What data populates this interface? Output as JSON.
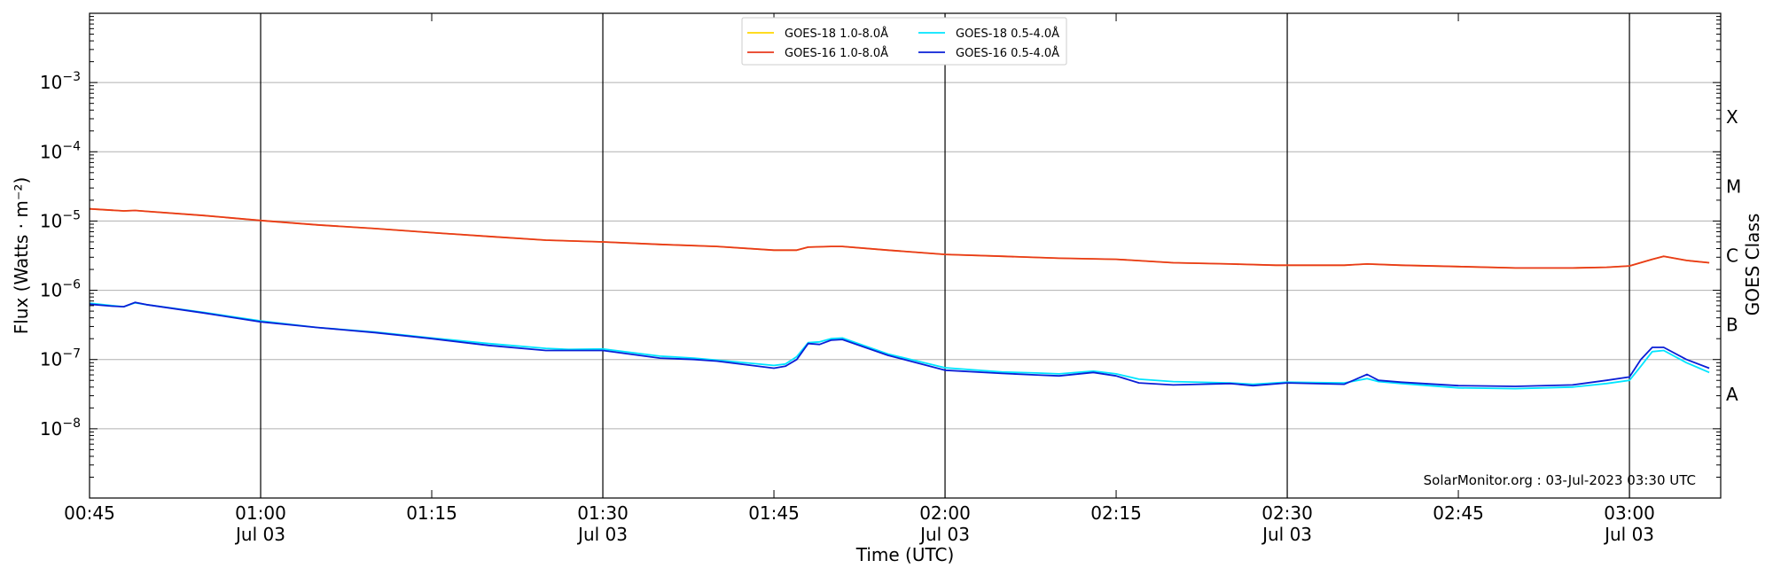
{
  "chart_data": {
    "type": "line",
    "title": "",
    "xlabel": "Time (UTC)",
    "ylabel": "Flux (Watts · m⁻²)",
    "y2label": "GOES Class",
    "yscale": "log",
    "ylim": [
      1e-09,
      0.01
    ],
    "xlim": [
      "00:45",
      "03:08"
    ],
    "grid": "horizontal",
    "legend_placement": "top-center",
    "watermark": "SolarMonitor.org : 03-Jul-2023 03:30 UTC",
    "xticks": [
      {
        "t": "00:45",
        "label": "00:45",
        "sub": ""
      },
      {
        "t": "01:00",
        "label": "01:00",
        "sub": "Jul 03"
      },
      {
        "t": "01:15",
        "label": "01:15",
        "sub": ""
      },
      {
        "t": "01:30",
        "label": "01:30",
        "sub": "Jul 03"
      },
      {
        "t": "01:45",
        "label": "01:45",
        "sub": ""
      },
      {
        "t": "02:00",
        "label": "02:00",
        "sub": "Jul 03"
      },
      {
        "t": "02:15",
        "label": "02:15",
        "sub": ""
      },
      {
        "t": "02:30",
        "label": "02:30",
        "sub": "Jul 03"
      },
      {
        "t": "02:45",
        "label": "02:45",
        "sub": ""
      },
      {
        "t": "03:00",
        "label": "03:00",
        "sub": "Jul 03"
      }
    ],
    "vlines": [
      "01:00",
      "01:30",
      "02:00",
      "02:30",
      "03:00"
    ],
    "yticks": [
      {
        "exp": -8,
        "label": "10",
        "sup": "−8"
      },
      {
        "exp": -7,
        "label": "10",
        "sup": "−7"
      },
      {
        "exp": -6,
        "label": "10",
        "sup": "−6"
      },
      {
        "exp": -5,
        "label": "10",
        "sup": "−5"
      },
      {
        "exp": -4,
        "label": "10",
        "sup": "−4"
      },
      {
        "exp": -3,
        "label": "10",
        "sup": "−3"
      }
    ],
    "goes_classes": [
      {
        "label": "A",
        "exp": -7.5
      },
      {
        "label": "B",
        "exp": -6.5
      },
      {
        "label": "C",
        "exp": -5.5
      },
      {
        "label": "M",
        "exp": -4.5
      },
      {
        "label": "X",
        "exp": -3.5
      }
    ],
    "series": [
      {
        "name": "GOES-18 1.0-8.0Å",
        "color": "#FFD700",
        "x": [
          "00:45",
          "00:48",
          "00:49",
          "00:50",
          "00:55",
          "01:00",
          "01:05",
          "01:10",
          "01:15",
          "01:20",
          "01:25",
          "01:30",
          "01:35",
          "01:40",
          "01:45",
          "01:47",
          "01:48",
          "01:50",
          "01:51",
          "01:55",
          "02:00",
          "02:05",
          "02:10",
          "02:15",
          "02:20",
          "02:25",
          "02:29",
          "02:30",
          "02:35",
          "02:37",
          "02:40",
          "02:45",
          "02:50",
          "02:55",
          "02:58",
          "03:00",
          "03:02",
          "03:03",
          "03:05",
          "03:07"
        ],
        "values": [
          1.5e-05,
          1.4e-05,
          1.42e-05,
          1.38e-05,
          1.2e-05,
          1.02e-05,
          8.8e-06,
          7.8e-06,
          6.8e-06,
          6e-06,
          5.3e-06,
          5e-06,
          4.6e-06,
          4.3e-06,
          3.8e-06,
          3.8e-06,
          4.2e-06,
          4.3e-06,
          4.3e-06,
          3.8e-06,
          3.3e-06,
          3.1e-06,
          2.9e-06,
          2.8e-06,
          2.5e-06,
          2.4e-06,
          2.3e-06,
          2.3e-06,
          2.3e-06,
          2.4e-06,
          2.3e-06,
          2.2e-06,
          2.1e-06,
          2.1e-06,
          2.15e-06,
          2.25e-06,
          2.8e-06,
          3.1e-06,
          2.7e-06,
          2.5e-06
        ]
      },
      {
        "name": "GOES-18 0.5-4.0Å",
        "color": "#00E5FF",
        "x": [
          "00:45",
          "00:47",
          "00:48",
          "00:49",
          "00:50",
          "00:55",
          "01:00",
          "01:05",
          "01:10",
          "01:15",
          "01:20",
          "01:25",
          "01:27",
          "01:30",
          "01:35",
          "01:38",
          "01:40",
          "01:45",
          "01:46",
          "01:47",
          "01:48",
          "01:49",
          "01:50",
          "01:51",
          "01:55",
          "02:00",
          "02:05",
          "02:08",
          "02:10",
          "02:13",
          "02:15",
          "02:17",
          "02:20",
          "02:25",
          "02:27",
          "02:30",
          "02:35",
          "02:37",
          "02:38",
          "02:40",
          "02:45",
          "02:50",
          "02:55",
          "02:58",
          "03:00",
          "03:01",
          "03:02",
          "03:03",
          "03:05",
          "03:07"
        ],
        "values": [
          6.5e-07,
          6e-07,
          5.8e-07,
          6.6e-07,
          6.2e-07,
          4.8e-07,
          3.6e-07,
          2.9e-07,
          2.5e-07,
          2.05e-07,
          1.7e-07,
          1.45e-07,
          1.4e-07,
          1.42e-07,
          1.12e-07,
          1.05e-07,
          9.8e-08,
          8.2e-08,
          8.6e-08,
          1.1e-07,
          1.75e-07,
          1.8e-07,
          2e-07,
          2.05e-07,
          1.2e-07,
          7.6e-08,
          6.6e-08,
          6.4e-08,
          6.2e-08,
          6.8e-08,
          6.2e-08,
          5.2e-08,
          4.8e-08,
          4.6e-08,
          4.4e-08,
          4.7e-08,
          4.6e-08,
          5.3e-08,
          4.8e-08,
          4.5e-08,
          3.9e-08,
          3.8e-08,
          4e-08,
          4.5e-08,
          5e-08,
          8e-08,
          1.3e-07,
          1.35e-07,
          9e-08,
          6.5e-08
        ]
      },
      {
        "name": "GOES-16 1.0-8.0Å",
        "color": "#E8391E",
        "x": [
          "00:45",
          "00:48",
          "00:49",
          "00:50",
          "00:55",
          "01:00",
          "01:05",
          "01:10",
          "01:15",
          "01:20",
          "01:25",
          "01:30",
          "01:35",
          "01:40",
          "01:45",
          "01:47",
          "01:48",
          "01:50",
          "01:51",
          "01:55",
          "02:00",
          "02:05",
          "02:10",
          "02:15",
          "02:20",
          "02:25",
          "02:29",
          "02:30",
          "02:35",
          "02:37",
          "02:40",
          "02:45",
          "02:50",
          "02:55",
          "02:58",
          "03:00",
          "03:02",
          "03:03",
          "03:05",
          "03:07"
        ],
        "values": [
          1.5e-05,
          1.4e-05,
          1.42e-05,
          1.38e-05,
          1.2e-05,
          1.02e-05,
          8.8e-06,
          7.8e-06,
          6.8e-06,
          6e-06,
          5.3e-06,
          5e-06,
          4.6e-06,
          4.3e-06,
          3.8e-06,
          3.8e-06,
          4.2e-06,
          4.3e-06,
          4.3e-06,
          3.8e-06,
          3.3e-06,
          3.1e-06,
          2.9e-06,
          2.8e-06,
          2.5e-06,
          2.4e-06,
          2.3e-06,
          2.3e-06,
          2.3e-06,
          2.4e-06,
          2.3e-06,
          2.2e-06,
          2.1e-06,
          2.1e-06,
          2.15e-06,
          2.25e-06,
          2.8e-06,
          3.1e-06,
          2.7e-06,
          2.5e-06
        ]
      },
      {
        "name": "GOES-16 0.5-4.0Å",
        "color": "#0A1FD6",
        "x": [
          "00:45",
          "00:47",
          "00:48",
          "00:49",
          "00:50",
          "00:55",
          "01:00",
          "01:05",
          "01:10",
          "01:15",
          "01:20",
          "01:25",
          "01:27",
          "01:30",
          "01:35",
          "01:38",
          "01:40",
          "01:45",
          "01:46",
          "01:47",
          "01:48",
          "01:49",
          "01:50",
          "01:51",
          "01:55",
          "02:00",
          "02:05",
          "02:08",
          "02:10",
          "02:13",
          "02:15",
          "02:17",
          "02:20",
          "02:25",
          "02:27",
          "02:30",
          "02:35",
          "02:37",
          "02:38",
          "02:40",
          "02:45",
          "02:50",
          "02:55",
          "02:58",
          "03:00",
          "03:01",
          "03:02",
          "03:03",
          "03:05",
          "03:07"
        ],
        "values": [
          6.3e-07,
          5.9e-07,
          5.8e-07,
          6.7e-07,
          6.2e-07,
          4.7e-07,
          3.5e-07,
          2.9e-07,
          2.45e-07,
          2e-07,
          1.6e-07,
          1.35e-07,
          1.35e-07,
          1.35e-07,
          1.05e-07,
          1e-07,
          9.5e-08,
          7.5e-08,
          8e-08,
          1e-07,
          1.7e-07,
          1.65e-07,
          1.9e-07,
          1.95e-07,
          1.15e-07,
          7e-08,
          6.3e-08,
          6e-08,
          5.8e-08,
          6.5e-08,
          5.8e-08,
          4.6e-08,
          4.3e-08,
          4.5e-08,
          4.2e-08,
          4.6e-08,
          4.4e-08,
          6.1e-08,
          5e-08,
          4.7e-08,
          4.2e-08,
          4.1e-08,
          4.3e-08,
          5e-08,
          5.6e-08,
          1e-07,
          1.5e-07,
          1.5e-07,
          1e-07,
          7.5e-08
        ]
      }
    ]
  }
}
